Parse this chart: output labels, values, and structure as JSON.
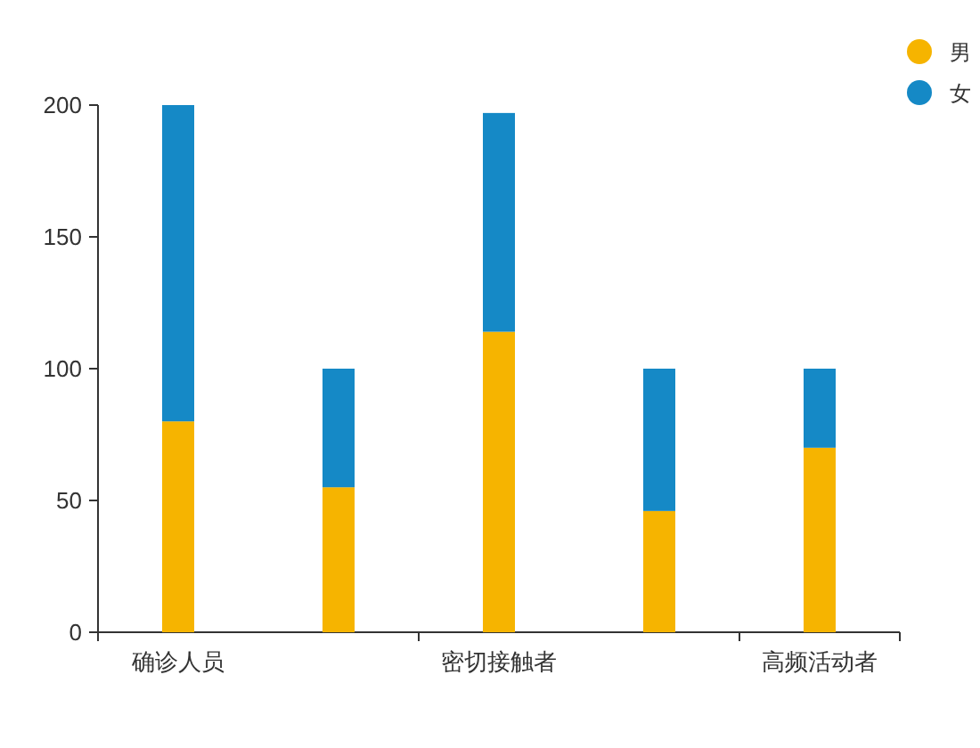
{
  "chart_data": {
    "type": "bar",
    "stacked": true,
    "categories": [
      "确诊人员",
      null,
      "密切接触者",
      null,
      "高频活动者"
    ],
    "series": [
      {
        "name": "男",
        "color": "#f6b400",
        "values": [
          80,
          55,
          114,
          46,
          70
        ]
      },
      {
        "name": "女",
        "color": "#1589c6",
        "values": [
          120,
          45,
          83,
          54,
          30
        ]
      }
    ],
    "ylim": [
      0,
      200
    ],
    "yticks": [
      0,
      50,
      100,
      150,
      200
    ],
    "grid": false,
    "legend": "top right"
  }
}
